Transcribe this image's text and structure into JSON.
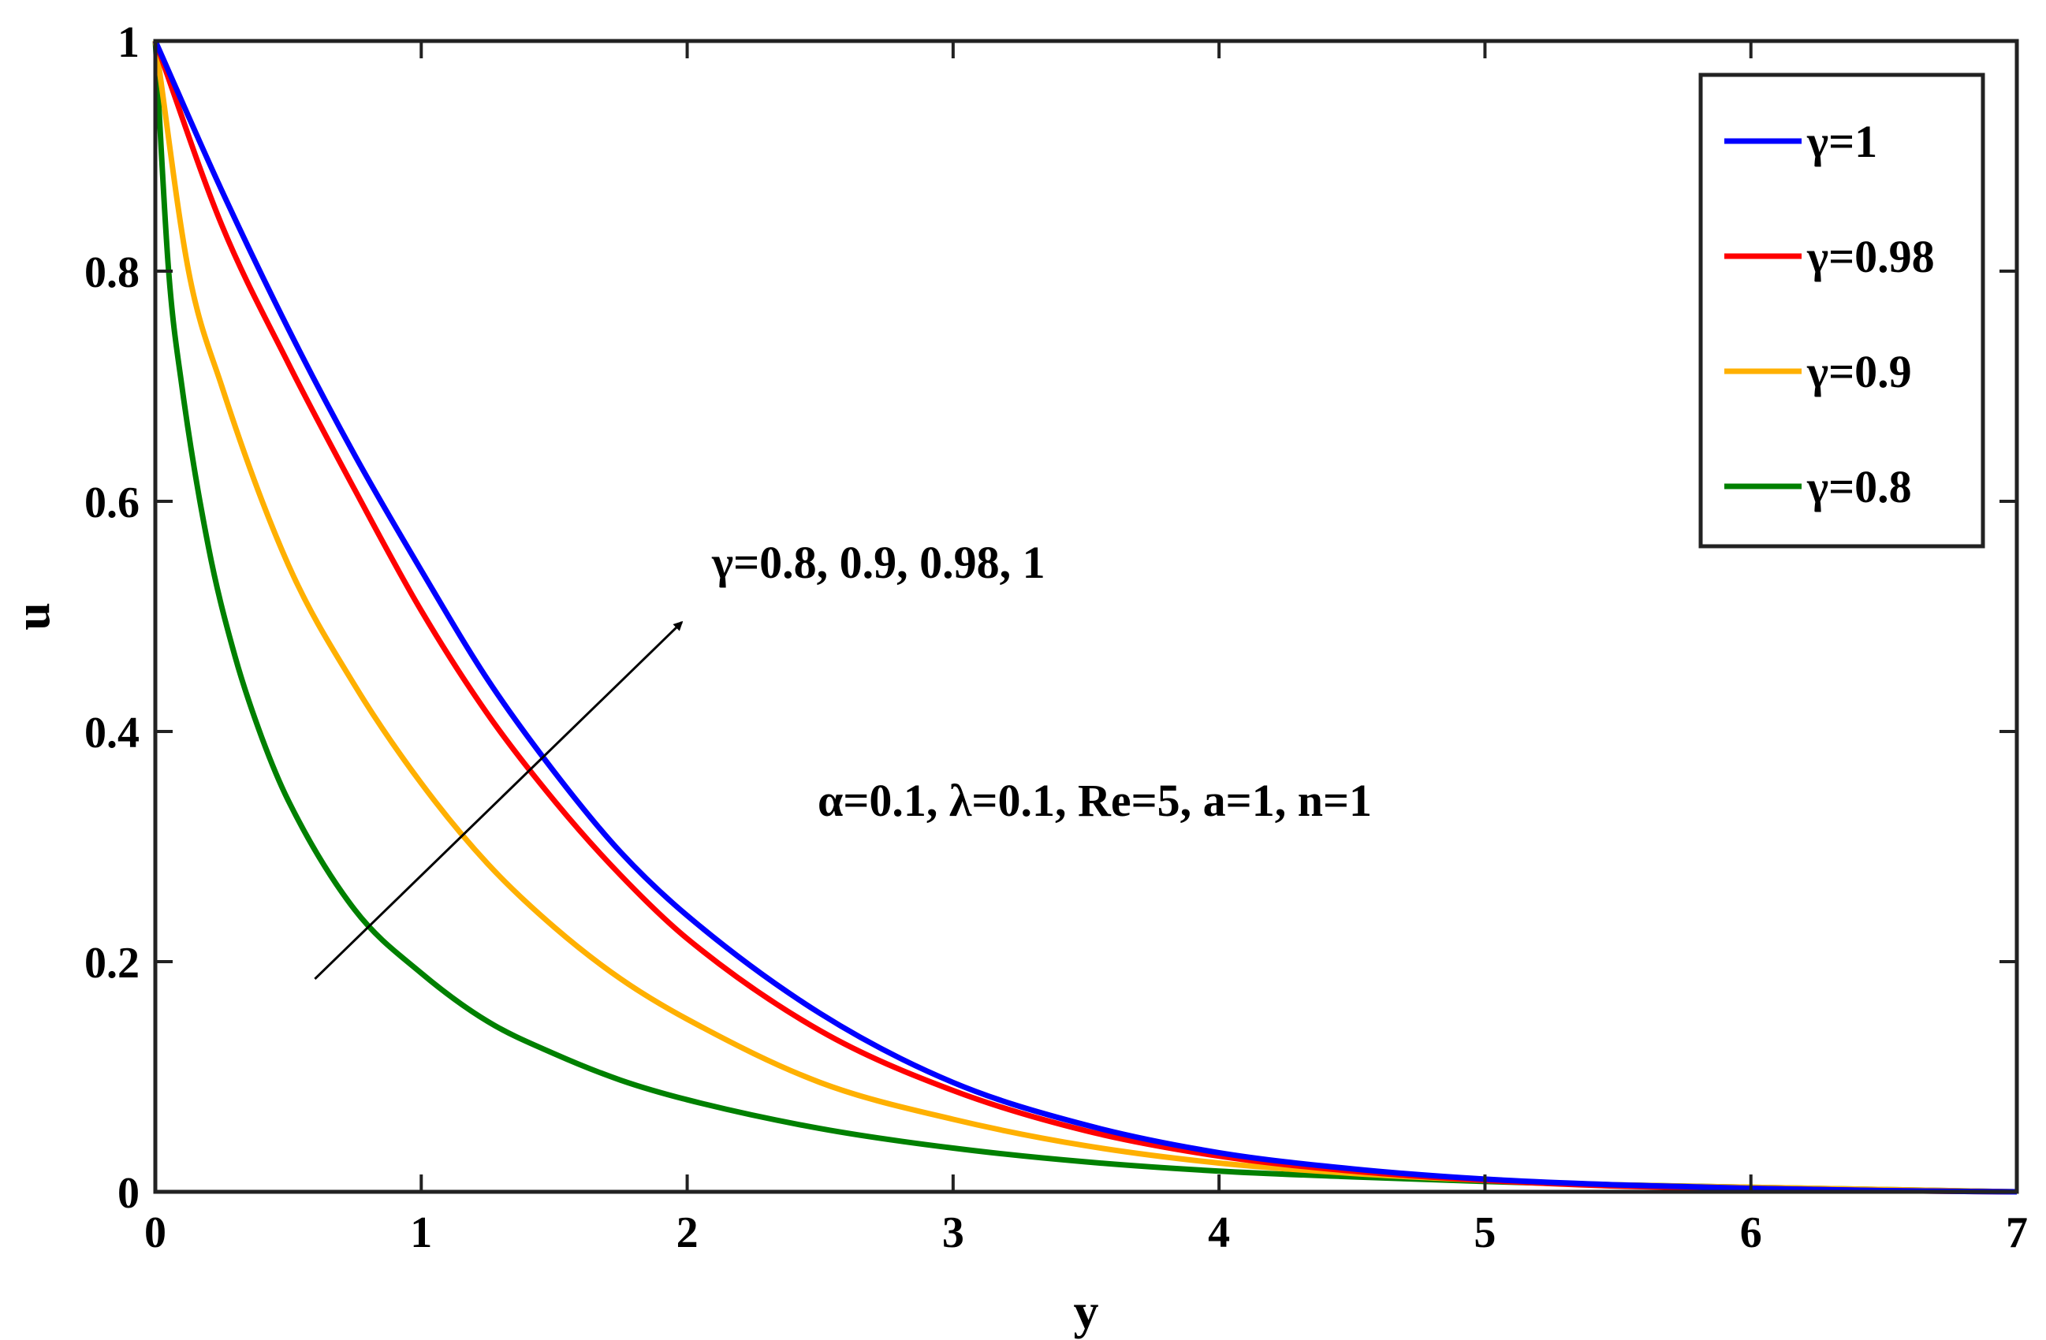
{
  "chart_data": {
    "type": "line",
    "title": "",
    "xlabel": "y",
    "ylabel": "u",
    "xlim": [
      0,
      7
    ],
    "ylim": [
      0,
      1
    ],
    "xticks": [
      0,
      1,
      2,
      3,
      4,
      5,
      6,
      7
    ],
    "yticks": [
      0,
      0.2,
      0.4,
      0.6,
      0.8,
      1
    ],
    "xtick_labels": [
      "0",
      "1",
      "2",
      "3",
      "4",
      "5",
      "6",
      "7"
    ],
    "ytick_labels": [
      "0",
      "0.2",
      "0.4",
      "0.6",
      "0.8",
      "1"
    ],
    "grid": false,
    "legend_position": "top-right",
    "series": [
      {
        "name": "γ=1",
        "color": "#0000FF",
        "x": [
          0,
          0.25,
          0.5,
          0.75,
          1,
          1.25,
          1.5,
          1.75,
          2,
          2.5,
          3,
          3.5,
          4,
          4.5,
          5,
          5.5,
          6,
          6.5,
          7
        ],
        "y": [
          1,
          0.87,
          0.75,
          0.64,
          0.54,
          0.445,
          0.365,
          0.295,
          0.24,
          0.155,
          0.095,
          0.058,
          0.034,
          0.02,
          0.011,
          0.006,
          0.003,
          0.001,
          0
        ]
      },
      {
        "name": "γ=0.98",
        "color": "#FF0000",
        "x": [
          0,
          0.25,
          0.5,
          0.75,
          1,
          1.25,
          1.5,
          1.75,
          2,
          2.5,
          3,
          3.5,
          4,
          4.5,
          5,
          5.5,
          6,
          6.5,
          7
        ],
        "y": [
          1,
          0.84,
          0.72,
          0.61,
          0.505,
          0.415,
          0.34,
          0.275,
          0.22,
          0.14,
          0.088,
          0.053,
          0.031,
          0.018,
          0.01,
          0.005,
          0.003,
          0.001,
          0
        ]
      },
      {
        "name": "γ=0.9",
        "color": "#FFB000",
        "x": [
          0,
          0.125,
          0.25,
          0.5,
          0.75,
          1,
          1.25,
          1.5,
          1.75,
          2,
          2.5,
          3,
          3.5,
          4,
          4.5,
          5,
          5.5,
          6,
          6.5,
          7
        ],
        "y": [
          1,
          0.8,
          0.7,
          0.545,
          0.44,
          0.355,
          0.285,
          0.23,
          0.185,
          0.15,
          0.095,
          0.063,
          0.04,
          0.025,
          0.016,
          0.01,
          0.006,
          0.004,
          0.002,
          0
        ]
      },
      {
        "name": "γ=0.8",
        "color": "#008000",
        "x": [
          0,
          0.05,
          0.1,
          0.2,
          0.3,
          0.4,
          0.5,
          0.75,
          1,
          1.25,
          1.5,
          1.75,
          2,
          2.5,
          3,
          3.5,
          4,
          4.5,
          5,
          5.5,
          6,
          6.5,
          7
        ],
        "y": [
          1,
          0.8,
          0.7,
          0.56,
          0.465,
          0.395,
          0.34,
          0.245,
          0.19,
          0.148,
          0.12,
          0.097,
          0.08,
          0.055,
          0.038,
          0.026,
          0.018,
          0.013,
          0.009,
          0.006,
          0.004,
          0.002,
          0
        ]
      }
    ],
    "annotations": [
      {
        "text": "γ=0.8,  0.9,  0.98,  1"
      },
      {
        "text": "α=0.1,   λ=0.1,  Re=5,  a=1,  n=1"
      }
    ],
    "arrow": {
      "from": [
        0.6,
        0.185
      ],
      "to": [
        1.98,
        0.495
      ]
    }
  }
}
